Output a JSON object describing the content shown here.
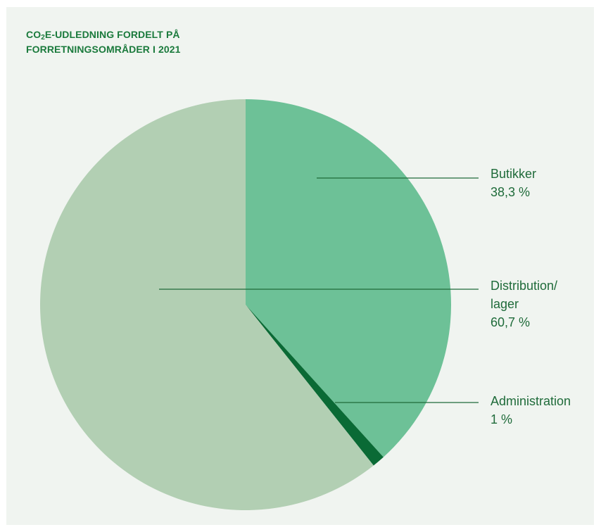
{
  "title": {
    "co": "CO",
    "sub": "2",
    "line1_rest": "E-UDLEDNING FORDELT PÅ",
    "line2": "FORRETNINGSOMRÅDER I 2021"
  },
  "chart_data": {
    "type": "pie",
    "title": "CO2E-UDLEDNING FORDELT PÅ FORRETNINGSOMRÅDER I 2021",
    "slices": [
      {
        "label_lines": [
          "Butikker"
        ],
        "value_label": "38,3 %",
        "value": 38.3,
        "color": "#6dc197"
      },
      {
        "label_lines": [
          "Administration"
        ],
        "value_label": "1 %",
        "value": 1.0,
        "color": "#0a6a35"
      },
      {
        "label_lines": [
          "Distribution/",
          "lager"
        ],
        "value_label": "60,7 %",
        "value": 60.7,
        "color": "#b2cfb3"
      }
    ],
    "start_angle_deg": 0,
    "direction": "clockwise",
    "leader_line_color": "#1f6b3a"
  }
}
